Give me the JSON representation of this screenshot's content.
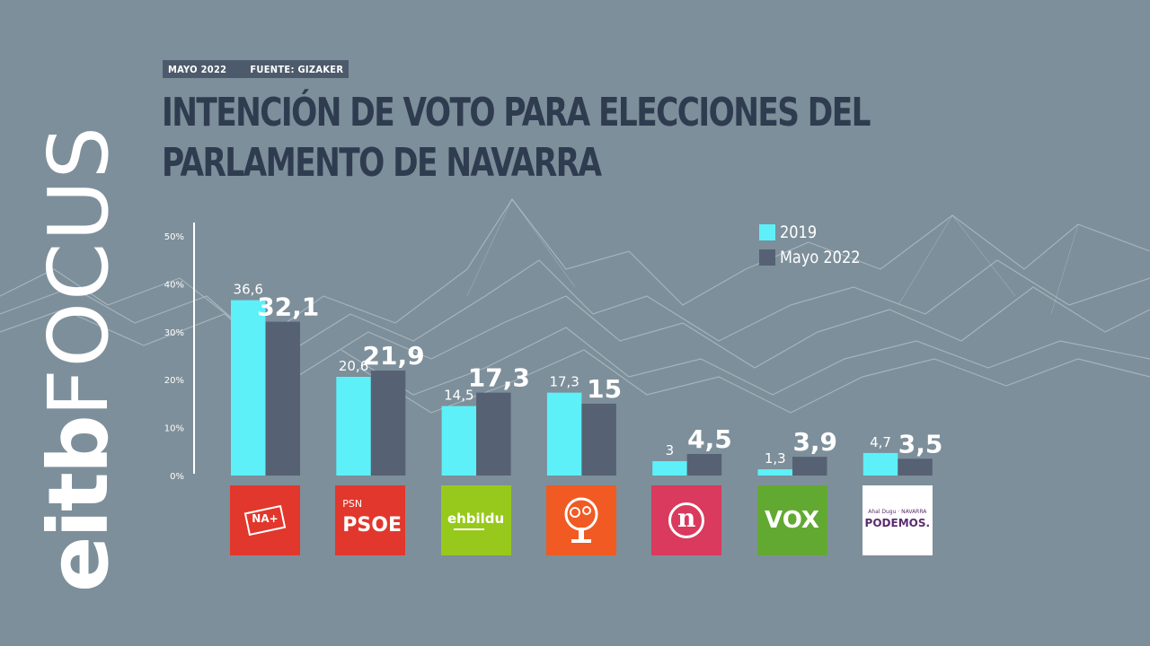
{
  "header": {
    "date": "MAYO 2022",
    "source": "FUENTE: GIZAKER",
    "title_line1": "INTENCIÓN DE VOTO PARA ELECCIONES DEL",
    "title_line2": "PARLAMENTO DE NAVARRA"
  },
  "brand": {
    "part1": "eitb",
    "part2": "FOCUS"
  },
  "colors": {
    "series2019": "#5df0f8",
    "seriesMayo2022": "#566173",
    "background": "#7d8f9a",
    "title": "#2f3c50"
  },
  "legend": [
    {
      "label": "2019",
      "color": "#5df0f8"
    },
    {
      "label": "Mayo 2022",
      "color": "#566173"
    }
  ],
  "parties": [
    {
      "logo_icon": "na-plus-icon",
      "logo_text": "NA+",
      "logo_bg": "#e2372c"
    },
    {
      "logo_icon": "psn-psoe-icon",
      "logo_top": "PSN",
      "logo_text": "PSOE",
      "logo_bg": "#e2372c"
    },
    {
      "logo_icon": "ehbildu-icon",
      "logo_text": "ehbildu",
      "logo_bg": "#97c91c"
    },
    {
      "logo_icon": "geroa-bai-tree-icon",
      "logo_bg": "#f15a22"
    },
    {
      "logo_icon": "n-icon",
      "logo_text": "n",
      "logo_bg": "#d93a5e"
    },
    {
      "logo_icon": "vox-icon",
      "logo_text": "VOX",
      "logo_bg": "#62a931"
    },
    {
      "logo_icon": "podemos-icon",
      "logo_top": "Ahal Dugu · NAVARRA",
      "logo_text": "PODEMOS.",
      "logo_bg": "#ffffff"
    }
  ],
  "chart_data": {
    "type": "bar",
    "categories": [
      "NA+",
      "PSN-PSOE",
      "EH Bildu",
      "Geroa Bai",
      "I-E (n)",
      "VOX",
      "Podemos"
    ],
    "series": [
      {
        "name": "2019",
        "values": [
          36.6,
          20.6,
          14.5,
          17.3,
          3,
          1.3,
          4.7
        ],
        "labels": [
          "36,6",
          "20,6",
          "14,5",
          "17,3",
          "3",
          "1,3",
          "4,7"
        ]
      },
      {
        "name": "Mayo 2022",
        "values": [
          32.1,
          21.9,
          17.3,
          15,
          4.5,
          3.9,
          3.5
        ],
        "labels": [
          "32,1",
          "21,9",
          "17,3",
          "15",
          "4,5",
          "3,9",
          "3,5"
        ]
      }
    ],
    "yticks": [
      "0%",
      "10%",
      "20%",
      "30%",
      "40%",
      "50%"
    ],
    "ylim": [
      0,
      50
    ],
    "legend_position": "top-right",
    "grid": false
  }
}
